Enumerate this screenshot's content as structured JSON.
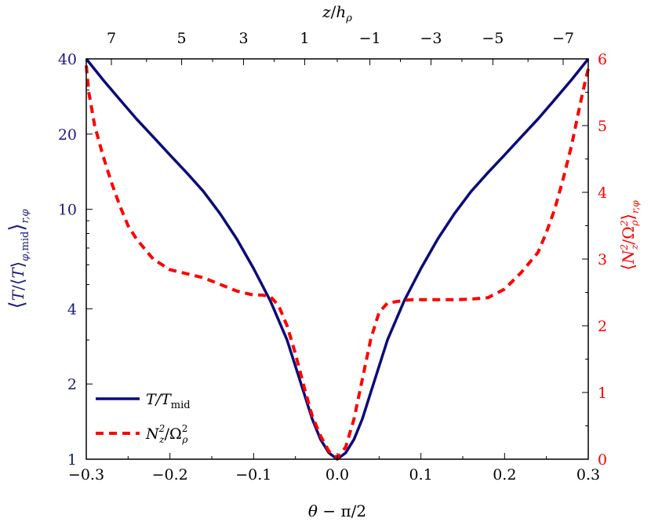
{
  "chart_data": {
    "type": "line",
    "xlabel": "θ − π/2",
    "top_xlabel": "z/h_ρ",
    "ylabel_left": "⟨T/⟨T⟩_{φ,mid}⟩_{r,φ}",
    "ylabel_right": "⟨N_z²/Ω_ρ²⟩_{r,φ}",
    "xlim": [
      -0.3,
      0.3
    ],
    "ylim_left": [
      1,
      40
    ],
    "yscale_left": "log",
    "ylim_right": [
      0,
      6
    ],
    "x_ticks": [
      "−0.3",
      "−0.2",
      "−0.1",
      "0.0",
      "0.1",
      "0.2",
      "0.3"
    ],
    "x_tick_values": [
      -0.3,
      -0.2,
      -0.1,
      0.0,
      0.1,
      0.2,
      0.3
    ],
    "top_x_ticks": [
      "7",
      "5",
      "3",
      "1",
      "−1",
      "−3",
      "−5",
      "−7"
    ],
    "top_x_tick_positions": [
      -0.27,
      -0.186,
      -0.112,
      -0.039,
      0.039,
      0.112,
      0.186,
      0.27
    ],
    "y_left_ticks": [
      "1",
      "2",
      "4",
      "10",
      "20",
      "40"
    ],
    "y_left_tick_values": [
      1,
      2,
      4,
      10,
      20,
      40
    ],
    "y_right_ticks": [
      "0",
      "1",
      "2",
      "3",
      "4",
      "5",
      "6"
    ],
    "y_right_tick_values": [
      0,
      1,
      2,
      3,
      4,
      5,
      6
    ],
    "legend_position": "bottom-left",
    "series": [
      {
        "name": "T/T_mid",
        "axis": "left",
        "color": "#0b0b7a",
        "style": "solid",
        "x": [
          -0.3,
          -0.28,
          -0.26,
          -0.24,
          -0.22,
          -0.2,
          -0.18,
          -0.16,
          -0.14,
          -0.12,
          -0.1,
          -0.08,
          -0.06,
          -0.04,
          -0.03,
          -0.02,
          -0.01,
          0.0,
          0.01,
          0.02,
          0.03,
          0.04,
          0.06,
          0.08,
          0.1,
          0.12,
          0.14,
          0.16,
          0.18,
          0.2,
          0.22,
          0.24,
          0.26,
          0.28,
          0.3
        ],
        "y": [
          40,
          33,
          27.5,
          23,
          19.5,
          16.5,
          14,
          11.8,
          9.6,
          7.6,
          5.8,
          4.3,
          3.0,
          1.85,
          1.45,
          1.2,
          1.06,
          1.0,
          1.06,
          1.2,
          1.45,
          1.85,
          3.0,
          4.3,
          5.8,
          7.6,
          9.6,
          11.8,
          14,
          16.5,
          19.5,
          23,
          27.5,
          33,
          40
        ]
      },
      {
        "name": "N_z²/Ω_ρ²",
        "axis": "right",
        "color": "#ff0000",
        "style": "dashed",
        "x": [
          -0.3,
          -0.297,
          -0.29,
          -0.28,
          -0.27,
          -0.26,
          -0.25,
          -0.24,
          -0.22,
          -0.2,
          -0.18,
          -0.16,
          -0.14,
          -0.12,
          -0.1,
          -0.09,
          -0.08,
          -0.07,
          -0.06,
          -0.05,
          -0.04,
          -0.03,
          -0.02,
          -0.01,
          0.0,
          0.01,
          0.02,
          0.03,
          0.04,
          0.05,
          0.06,
          0.07,
          0.08,
          0.09,
          0.1,
          0.12,
          0.14,
          0.16,
          0.18,
          0.2,
          0.22,
          0.24,
          0.25,
          0.26,
          0.27,
          0.28,
          0.29,
          0.297,
          0.3
        ],
        "y": [
          5.9,
          5.5,
          5.0,
          4.55,
          4.15,
          3.8,
          3.5,
          3.3,
          3.0,
          2.84,
          2.78,
          2.72,
          2.62,
          2.52,
          2.46,
          2.46,
          2.44,
          2.3,
          2.0,
          1.58,
          1.1,
          0.65,
          0.35,
          0.12,
          0.02,
          0.18,
          0.6,
          1.2,
          1.8,
          2.2,
          2.34,
          2.36,
          2.38,
          2.39,
          2.39,
          2.39,
          2.39,
          2.4,
          2.42,
          2.55,
          2.8,
          3.1,
          3.4,
          3.75,
          4.2,
          4.7,
          5.3,
          5.7,
          5.85
        ]
      }
    ]
  },
  "legend": [
    {
      "label": "T/T",
      "sub": "mid",
      "color": "#0b0b7a",
      "style": "solid"
    },
    {
      "label": "N",
      "sub": "z",
      "sup": "2",
      "slash": "/Ω",
      "sub2": "ρ",
      "sup2": "2",
      "color": "#ff0000",
      "style": "dashed"
    }
  ]
}
